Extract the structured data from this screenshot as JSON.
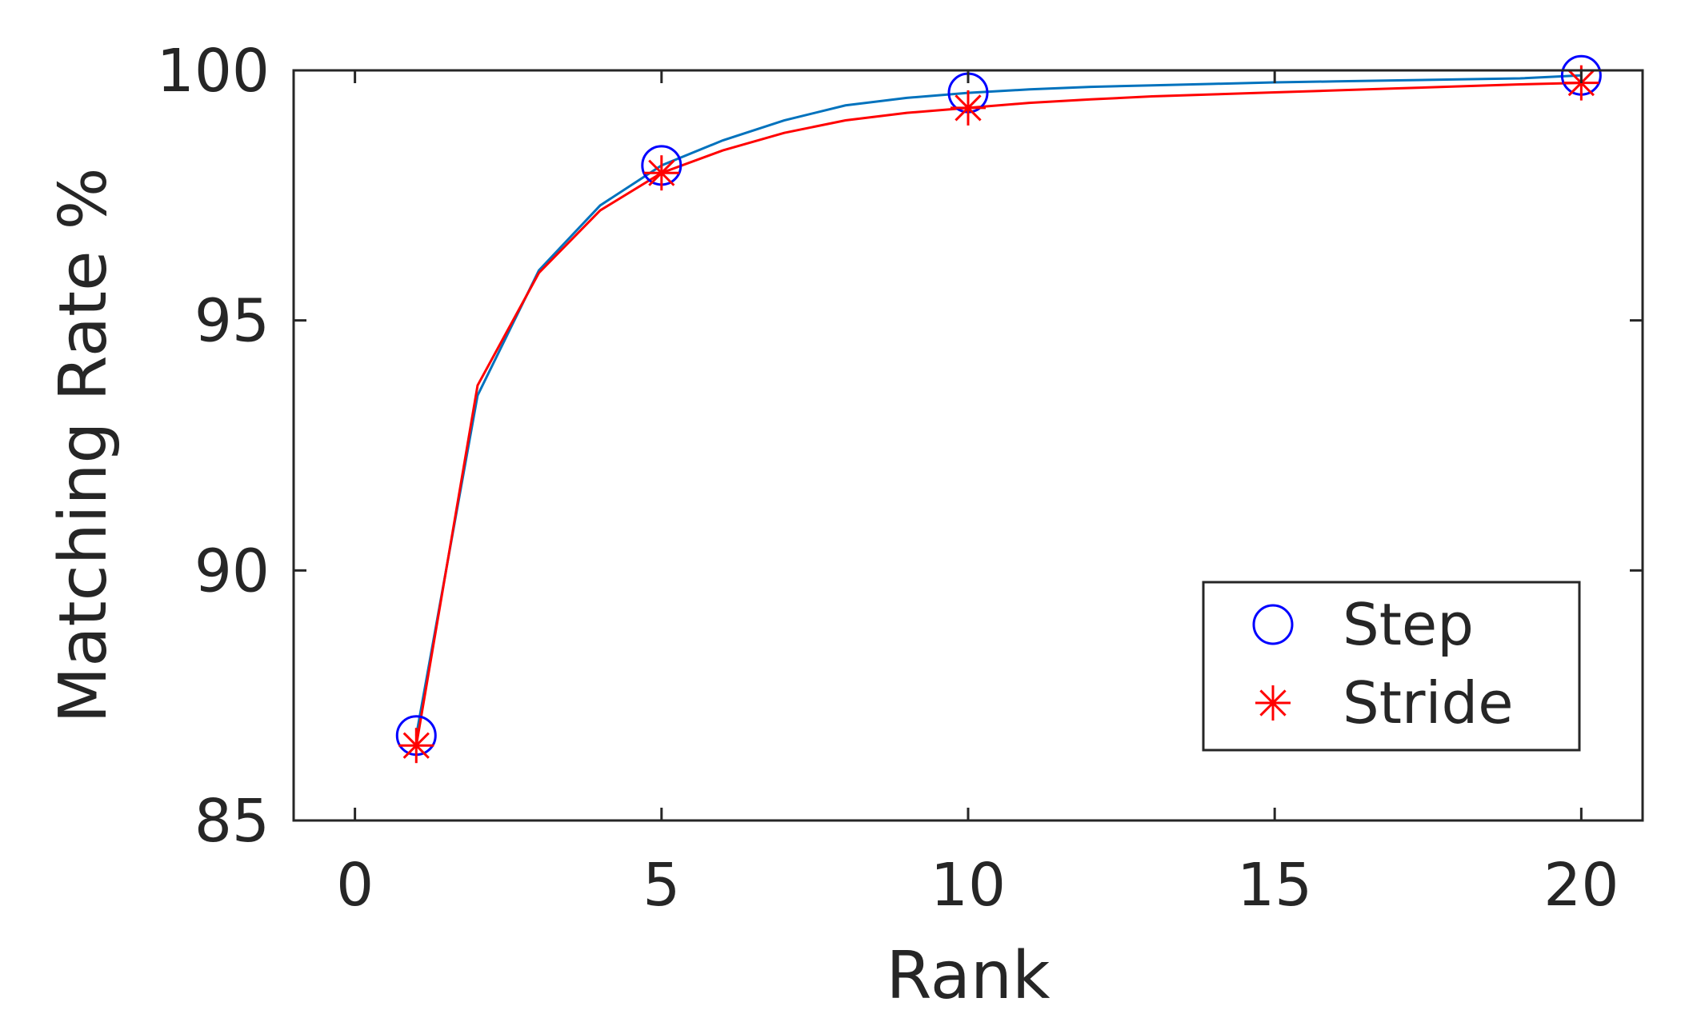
{
  "chart_data": {
    "type": "line",
    "xlabel": "Rank",
    "ylabel": "Matching Rate %",
    "xlim": [
      -1,
      21
    ],
    "ylim": [
      85,
      100
    ],
    "xticks": [
      0,
      5,
      10,
      15,
      20
    ],
    "yticks": [
      85,
      90,
      95,
      100
    ],
    "grid": false,
    "legend_position": "bottom-right",
    "series": [
      {
        "name": "Step",
        "marker": "circle",
        "color": "#0000ff",
        "line_color": "#0072bd",
        "x": [
          1,
          2,
          3,
          4,
          5,
          6,
          7,
          8,
          9,
          10,
          11,
          12,
          13,
          14,
          15,
          16,
          17,
          18,
          19,
          20
        ],
        "y": [
          86.7,
          93.5,
          96.0,
          97.3,
          98.1,
          98.6,
          99.0,
          99.3,
          99.45,
          99.55,
          99.62,
          99.67,
          99.7,
          99.73,
          99.76,
          99.78,
          99.8,
          99.82,
          99.84,
          99.9
        ],
        "marker_x": [
          1,
          5,
          10,
          20
        ],
        "marker_y": [
          86.7,
          98.1,
          99.55,
          99.9
        ]
      },
      {
        "name": "Stride",
        "marker": "asterisk",
        "color": "#ff0000",
        "line_color": "#ff0000",
        "x": [
          1,
          2,
          3,
          4,
          5,
          6,
          7,
          8,
          9,
          10,
          11,
          12,
          13,
          14,
          15,
          16,
          17,
          18,
          19,
          20
        ],
        "y": [
          86.5,
          93.7,
          95.95,
          97.2,
          97.95,
          98.4,
          98.75,
          99.0,
          99.15,
          99.25,
          99.35,
          99.42,
          99.48,
          99.52,
          99.56,
          99.6,
          99.64,
          99.68,
          99.72,
          99.75
        ],
        "marker_x": [
          1,
          5,
          10,
          20
        ],
        "marker_y": [
          86.5,
          97.95,
          99.25,
          99.75
        ]
      }
    ]
  }
}
